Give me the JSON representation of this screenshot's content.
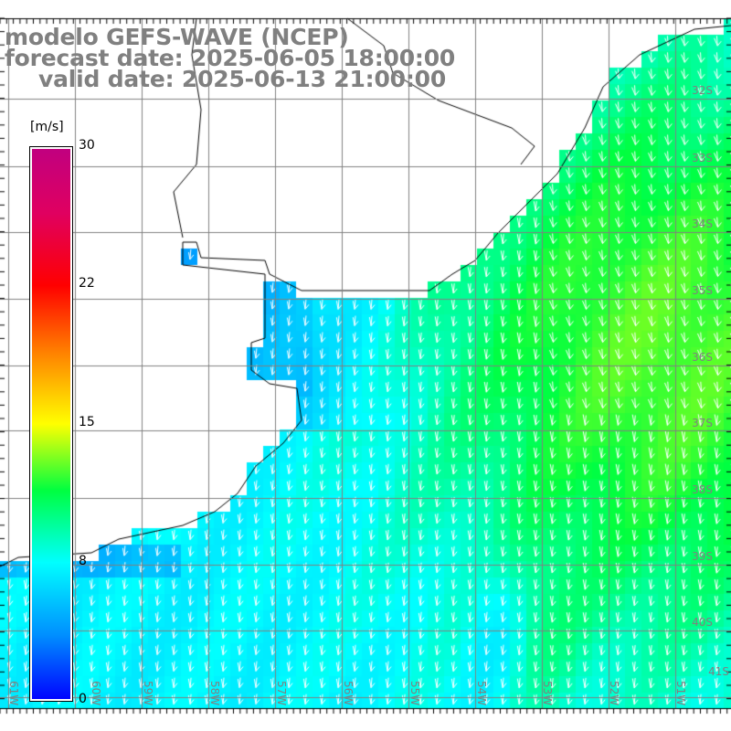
{
  "title": {
    "model": "modelo GEFS-WAVE (NCEP)",
    "forecast": "forecast date: 2025-06-05 18:00:00",
    "valid": "valid date: 2025-06-13 21:00:00"
  },
  "colorbar": {
    "unit": "[m/s]",
    "ticks": [
      "30",
      "22",
      "15",
      "8",
      "0"
    ],
    "range": [
      0,
      30
    ]
  },
  "lat_labels": [
    "32S",
    "33S",
    "34S",
    "35S",
    "36S",
    "37S",
    "38S",
    "39S",
    "40S",
    "41S"
  ],
  "lon_labels": [
    "61W",
    "60W",
    "59W",
    "58W",
    "57W",
    "56W",
    "55W",
    "54W",
    "53W",
    "52W",
    "51W"
  ],
  "colors": {
    "land": "#ffffff",
    "grid": "#808080",
    "coast": "#000000",
    "arrow": "#ffffff"
  }
}
